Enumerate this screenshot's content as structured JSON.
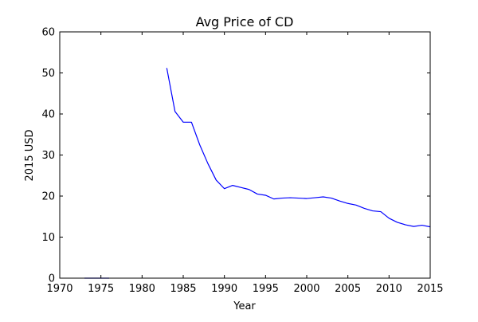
{
  "chart_data": {
    "type": "line",
    "title": "Avg Price of CD",
    "xlabel": "Year",
    "ylabel": "2015 USD",
    "xlim": [
      1970,
      2015
    ],
    "ylim": [
      0,
      60
    ],
    "xticks": [
      1970,
      1975,
      1980,
      1985,
      1990,
      1995,
      2000,
      2005,
      2010,
      2015
    ],
    "yticks": [
      0,
      10,
      20,
      30,
      40,
      50,
      60
    ],
    "grid": false,
    "line_color": "#0000ff",
    "series": [
      {
        "segments": [
          {
            "x": [
              1973,
              1974,
              1975,
              1976
            ],
            "y": [
              0,
              0,
              0,
              0
            ]
          },
          {
            "x": [
              1983,
              1984,
              1985,
              1986,
              1987,
              1988,
              1989,
              1990,
              1991,
              1992,
              1993,
              1994,
              1995,
              1996,
              1997,
              1998,
              1999,
              2000,
              2001,
              2002,
              2003,
              2004,
              2005,
              2006,
              2007,
              2008,
              2009,
              2010,
              2011,
              2012,
              2013,
              2014,
              2015
            ],
            "y": [
              51.2,
              40.6,
              38.0,
              38.0,
              32.5,
              27.9,
              23.9,
              21.8,
              22.6,
              22.1,
              21.6,
              20.5,
              20.2,
              19.3,
              19.5,
              19.6,
              19.5,
              19.4,
              19.6,
              19.8,
              19.5,
              18.8,
              18.2,
              17.8,
              17.0,
              16.4,
              16.2,
              14.6,
              13.6,
              13.0,
              12.6,
              12.9,
              12.5
            ]
          }
        ]
      }
    ]
  }
}
